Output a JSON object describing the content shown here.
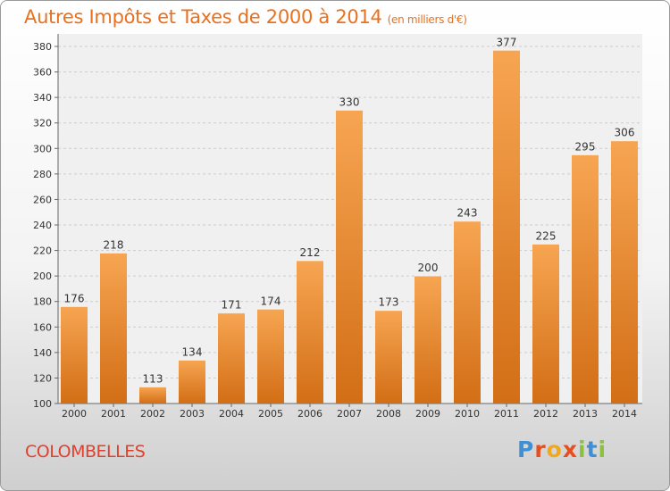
{
  "title": "Autres Impôts et Taxes de 2000 à 2014",
  "subtitle": "(en milliers d'€)",
  "commune": "COLOMBELLES",
  "brand": {
    "letters": [
      "P",
      "r",
      "o",
      "x",
      "i",
      "t",
      "i"
    ]
  },
  "colors": {
    "bar_light": "#f7a552",
    "bar_dark": "#d26e16",
    "title": "#e8701e",
    "commune": "#e0412f",
    "brand": [
      "#3f8fd6",
      "#e84d1c",
      "#f2a81d",
      "#e84d1c",
      "#8cc13f",
      "#3f8fd6",
      "#8cc13f"
    ]
  },
  "chart_data": {
    "type": "bar",
    "title": "Autres Impôts et Taxes de 2000 à 2014",
    "subtitle": "(en milliers d'€)",
    "categories": [
      "2000",
      "2001",
      "2002",
      "2003",
      "2004",
      "2005",
      "2006",
      "2007",
      "2008",
      "2009",
      "2010",
      "2011",
      "2012",
      "2013",
      "2014"
    ],
    "values": [
      176,
      218,
      113,
      134,
      171,
      174,
      212,
      330,
      173,
      200,
      243,
      377,
      225,
      295,
      306
    ],
    "ylim": [
      100,
      380
    ],
    "yticks": [
      100,
      120,
      140,
      160,
      180,
      200,
      220,
      240,
      260,
      280,
      300,
      320,
      340,
      360,
      380
    ],
    "grid": true,
    "xlabel": "",
    "ylabel": ""
  }
}
